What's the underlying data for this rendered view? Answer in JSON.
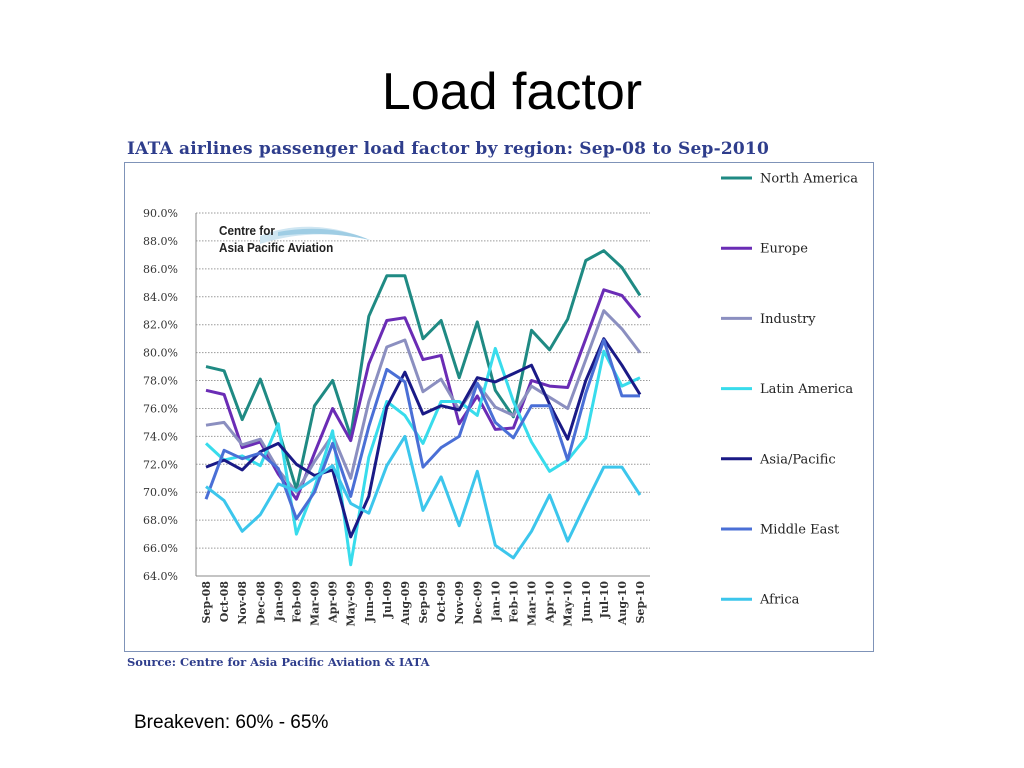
{
  "slide": {
    "title": "Load factor",
    "footnote": "Breakeven: 60% - 65%"
  },
  "logo": {
    "line1": "Centre for",
    "line2": "Asia Pacific Aviation"
  },
  "chart_data": {
    "type": "line",
    "title": "IATA airlines passenger load factor by region: Sep-08 to Sep-2010",
    "source": "Source: Centre for Asia Pacific Aviation & IATA",
    "xlabel": "",
    "ylabel": "",
    "ylim": [
      64,
      90
    ],
    "y_ticks": [
      "64.0%",
      "66.0%",
      "68.0%",
      "70.0%",
      "72.0%",
      "74.0%",
      "76.0%",
      "78.0%",
      "80.0%",
      "82.0%",
      "84.0%",
      "86.0%",
      "88.0%",
      "90.0%"
    ],
    "grid": true,
    "legend_position": "right",
    "categories": [
      "Sep-08",
      "Oct-08",
      "Nov-08",
      "Dec-08",
      "Jan-09",
      "Feb-09",
      "Mar-09",
      "Apr-09",
      "May-09",
      "Jun-09",
      "Jul-09",
      "Aug-09",
      "Sep-09",
      "Oct-09",
      "Nov-09",
      "Dec-09",
      "Jan-10",
      "Feb-10",
      "Mar-10",
      "Apr-10",
      "May-10",
      "Jun-10",
      "Jul-10",
      "Aug-10",
      "Sep-10"
    ],
    "series": [
      {
        "name": "North America",
        "color": "#1f8a83",
        "values": [
          79.0,
          78.7,
          75.2,
          78.1,
          74.5,
          70.2,
          76.2,
          78.0,
          74.0,
          82.6,
          85.5,
          85.5,
          81.0,
          82.3,
          78.2,
          82.2,
          77.3,
          75.4,
          81.6,
          80.2,
          82.4,
          86.6,
          87.3,
          86.1,
          84.1
        ]
      },
      {
        "name": "Europe",
        "color": "#6a2cb5",
        "values": [
          77.3,
          77.0,
          73.2,
          73.6,
          71.3,
          69.5,
          72.8,
          76.0,
          73.7,
          79.2,
          82.3,
          82.5,
          79.5,
          79.8,
          74.9,
          76.9,
          74.5,
          74.6,
          78.0,
          77.6,
          77.5,
          81.0,
          84.5,
          84.1,
          82.5
        ]
      },
      {
        "name": "Industry",
        "color": "#8b8fc0",
        "values": [
          74.8,
          75.0,
          73.4,
          73.8,
          71.6,
          70.0,
          72.2,
          74.1,
          71.0,
          76.5,
          80.4,
          80.9,
          77.2,
          78.1,
          75.9,
          77.8,
          76.1,
          75.5,
          77.6,
          76.8,
          76.0,
          79.5,
          83.0,
          81.7,
          80.0
        ]
      },
      {
        "name": "Latin America",
        "color": "#38dcec",
        "values": [
          73.5,
          72.3,
          72.6,
          71.9,
          74.9,
          67.0,
          70.3,
          74.4,
          64.8,
          72.5,
          76.5,
          75.5,
          73.5,
          76.5,
          76.5,
          75.5,
          80.3,
          76.5,
          73.6,
          71.5,
          72.3,
          73.9,
          80.1,
          77.6,
          78.2
        ]
      },
      {
        "name": "Asia/Pacific",
        "color": "#1a1a86",
        "values": [
          71.8,
          72.3,
          71.6,
          72.9,
          73.5,
          72.0,
          71.2,
          71.6,
          66.8,
          69.7,
          76.1,
          78.6,
          75.6,
          76.2,
          75.9,
          78.2,
          77.9,
          78.5,
          79.1,
          76.3,
          73.8,
          78.0,
          81.0,
          79.1,
          77.0
        ]
      },
      {
        "name": "Middle East",
        "color": "#4a6fd6",
        "values": [
          69.5,
          73.0,
          72.4,
          72.8,
          71.7,
          68.1,
          70.0,
          73.5,
          69.7,
          74.7,
          78.8,
          77.9,
          71.8,
          73.2,
          74.0,
          77.8,
          75.0,
          73.9,
          76.2,
          76.2,
          72.3,
          77.1,
          80.9,
          76.9,
          76.9
        ]
      },
      {
        "name": "Africa",
        "color": "#3cc6ec",
        "values": [
          70.4,
          69.4,
          67.2,
          68.4,
          70.6,
          70.1,
          71.0,
          71.9,
          69.2,
          68.5,
          71.9,
          74.0,
          68.7,
          71.1,
          67.6,
          71.5,
          66.2,
          65.3,
          67.2,
          69.8,
          66.5,
          69.2,
          71.8,
          71.8,
          69.8
        ]
      }
    ]
  }
}
